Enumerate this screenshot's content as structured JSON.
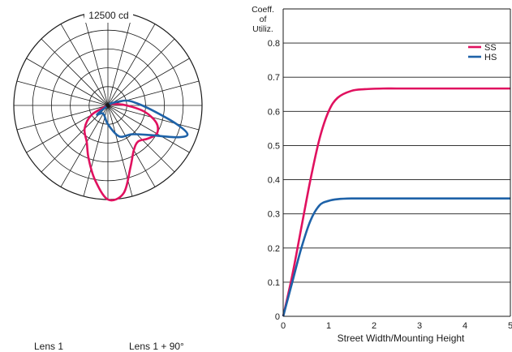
{
  "chart_data": [
    {
      "type": "polar",
      "scale_label": "12500 cd",
      "rings": 5,
      "spokes_deg_step": 15,
      "series": [
        {
          "name": "SS",
          "color": "#e0115f",
          "points": [
            [
              -60,
              0.2
            ],
            [
              -45,
              0.35
            ],
            [
              -30,
              0.45
            ],
            [
              -20,
              0.6
            ],
            [
              -10,
              0.8
            ],
            [
              0,
              1.0
            ],
            [
              10,
              0.95
            ],
            [
              20,
              0.7
            ],
            [
              30,
              0.55
            ],
            [
              40,
              0.5
            ],
            [
              50,
              0.55
            ],
            [
              60,
              0.6
            ],
            [
              70,
              0.55
            ],
            [
              80,
              0.4
            ],
            [
              90,
              0.2
            ],
            [
              110,
              0.05
            ]
          ]
        },
        {
          "name": "HS",
          "color": "#1e62a8",
          "points": [
            [
              -50,
              0.15
            ],
            [
              -30,
              0.1
            ],
            [
              0,
              0.2
            ],
            [
              20,
              0.35
            ],
            [
              40,
              0.4
            ],
            [
              55,
              0.55
            ],
            [
              65,
              0.8
            ],
            [
              70,
              0.9
            ],
            [
              75,
              0.75
            ],
            [
              85,
              0.45
            ],
            [
              95,
              0.3
            ],
            [
              105,
              0.2
            ],
            [
              120,
              0.05
            ]
          ]
        }
      ],
      "lens_labels": [
        "Lens 1",
        "Lens 1 + 90°"
      ]
    },
    {
      "type": "line",
      "ylabel": [
        "Coeff.",
        "of",
        "Utiliz."
      ],
      "xlabel": "Street Width/Mounting Height",
      "xlim": [
        0,
        5
      ],
      "ylim": [
        0,
        0.9
      ],
      "xticks": [
        "0",
        "1",
        "2",
        "3",
        "4",
        "5"
      ],
      "yticks": [
        "0",
        "0.1",
        "0.2",
        "0.3",
        "0.4",
        "0.5",
        "0.6",
        "0.7",
        "0.8"
      ],
      "legend": "top-right",
      "series": [
        {
          "name": "SS",
          "color": "#e0115f",
          "x": [
            0,
            0.2,
            0.4,
            0.6,
            0.8,
            1.0,
            1.2,
            1.5,
            1.8,
            2.2,
            2.5,
            3,
            4,
            5
          ],
          "y": [
            0,
            0.12,
            0.26,
            0.4,
            0.52,
            0.6,
            0.64,
            0.66,
            0.665,
            0.667,
            0.667,
            0.667,
            0.667,
            0.667
          ]
        },
        {
          "name": "HS",
          "color": "#1e62a8",
          "x": [
            0,
            0.2,
            0.4,
            0.6,
            0.8,
            1.0,
            1.2,
            1.5,
            2,
            3,
            4,
            5
          ],
          "y": [
            0,
            0.1,
            0.2,
            0.28,
            0.325,
            0.338,
            0.343,
            0.345,
            0.345,
            0.345,
            0.345,
            0.345
          ]
        }
      ]
    }
  ]
}
